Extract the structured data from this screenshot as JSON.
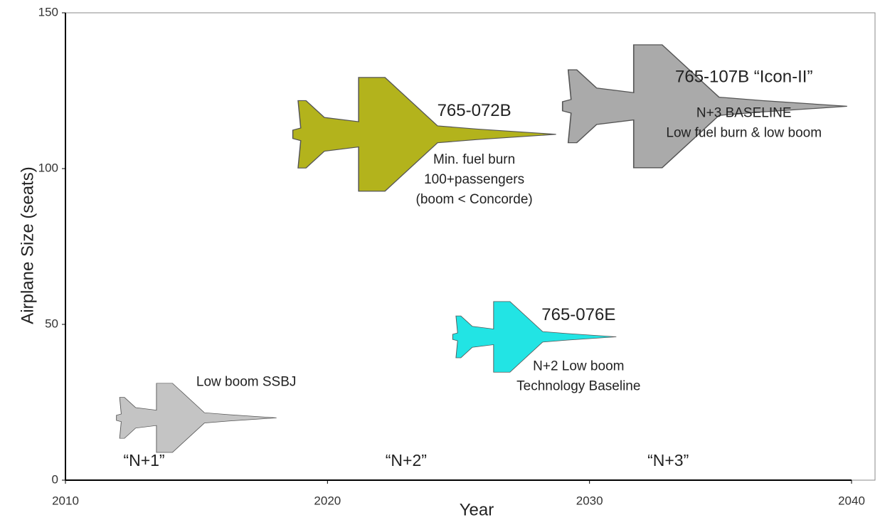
{
  "chart_data": {
    "type": "scatter",
    "x_label": "Year",
    "y_label": "Airplane Size (seats)",
    "xlim": [
      2010,
      2040
    ],
    "xticks": [
      2010,
      2020,
      2030,
      2040
    ],
    "ylim": [
      0,
      150
    ],
    "yticks": [
      0,
      50,
      100,
      150
    ],
    "eras": [
      "“N+1”",
      "“N+2”",
      "“N+3”"
    ],
    "series": [
      {
        "name": "Low boom SSBJ",
        "color": "#c4c4c4",
        "x": [
          2015
        ],
        "values": [
          20
        ],
        "notes": []
      },
      {
        "name": "765-072B",
        "color": "#b3b31c",
        "x": [
          2023.7
        ],
        "values": [
          111
        ],
        "notes": [
          "Min. fuel burn",
          "100+passengers",
          "(boom < Concorde)"
        ]
      },
      {
        "name": "765-107B “Icon-II”",
        "color": "#aaaaaa",
        "x": [
          2034.4
        ],
        "values": [
          120
        ],
        "notes": [
          "N+3 BASELINE",
          "Low fuel burn & low boom"
        ]
      },
      {
        "name": "765-076E",
        "color": "#22e4e4",
        "x": [
          2027.9
        ],
        "values": [
          46
        ],
        "notes": [
          "N+2 Low boom",
          "Technology Baseline"
        ]
      }
    ]
  }
}
